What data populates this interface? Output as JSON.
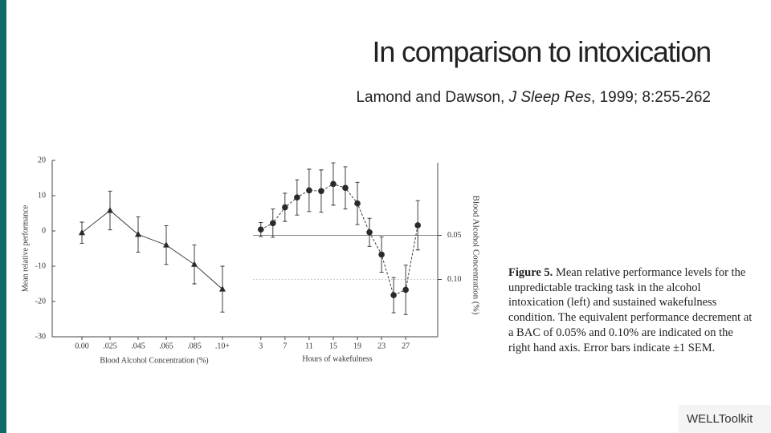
{
  "slide_title": "In comparison to intoxication",
  "citation": {
    "authors": "Lamond and Dawson, ",
    "journal": "J Sleep Res",
    "rest": ", 1999; 8:255-262"
  },
  "caption": {
    "label": "Figure 5.",
    "text": "Mean relative performance levels for the unpredictable tracking task in the alcohol intoxication (left) and sustained wakefulness condition. The equivalent performance decrement at a BAC of 0.05% and 0.10% are indicated on the right hand axis. Error bars indicate ±1 SEM."
  },
  "logo": "WELLToolkit",
  "chart_data": [
    {
      "type": "line",
      "xlabel": "Blood Alcohol Concentration (%)",
      "ylabel": "Mean relative performance",
      "categories": [
        "0.00",
        ".025",
        ".045",
        ".065",
        ".085",
        ".10+"
      ],
      "series": [
        {
          "color": "#2a2a2a",
          "marker": "triangle",
          "values": [
            -0.5,
            5.8,
            -1,
            -4,
            -9.5,
            -16.5
          ],
          "errors": [
            3,
            5.5,
            5,
            5.5,
            5.5,
            6.5
          ]
        }
      ],
      "ylim": [
        -30,
        20
      ],
      "yticks": [
        -30,
        -20,
        -10,
        0,
        10,
        20
      ]
    },
    {
      "type": "line",
      "xlabel": "Hours of wakefulness",
      "y2label": "Blood Alcohol Concentration (%)",
      "x": [
        3,
        5,
        7,
        9,
        11,
        13,
        15,
        17,
        19,
        21,
        23,
        25,
        27,
        29
      ],
      "series": [
        {
          "color": "#2a2a2a",
          "marker": "circle",
          "dashed": true,
          "values": [
            0.4,
            2.2,
            6.7,
            9.5,
            11.5,
            11.3,
            13.3,
            12.2,
            7.8,
            -0.4,
            -6.7,
            -18.2,
            -16.7,
            1.6
          ],
          "errors": [
            2,
            4,
            4,
            5,
            6,
            6,
            6,
            6,
            6,
            4,
            5,
            5,
            7,
            7
          ]
        }
      ],
      "xlim": [
        1.7,
        32.3
      ],
      "xticks": [
        3,
        7,
        11,
        15,
        19,
        23,
        27
      ],
      "ylim": [
        -30,
        20
      ],
      "y2lim": [
        0.165,
        -0.035
      ],
      "y2ticks": [
        0.05,
        {
          "value": 0.1,
          "label": "0.10"
        }
      ],
      "grid": true
    }
  ]
}
